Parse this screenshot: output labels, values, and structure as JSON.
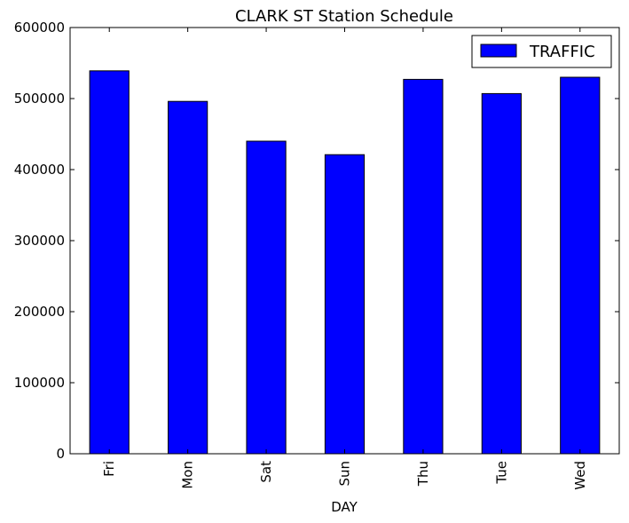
{
  "chart_data": {
    "type": "bar",
    "title": "CLARK ST Station Schedule",
    "xlabel": "DAY",
    "ylabel": "",
    "categories": [
      "Fri",
      "Mon",
      "Sat",
      "Sun",
      "Thu",
      "Tue",
      "Wed"
    ],
    "series": [
      {
        "name": "TRAFFIC",
        "color": "#0000ff",
        "values": [
          539000,
          496000,
          440000,
          421000,
          527000,
          507000,
          530000
        ]
      }
    ],
    "ylim": [
      0,
      600000
    ],
    "yticks": [
      0,
      100000,
      200000,
      300000,
      400000,
      500000,
      600000
    ],
    "ytick_labels": [
      "0",
      "100000",
      "200000",
      "300000",
      "400000",
      "500000",
      "600000"
    ],
    "grid": false,
    "legend_position": "top-right"
  }
}
